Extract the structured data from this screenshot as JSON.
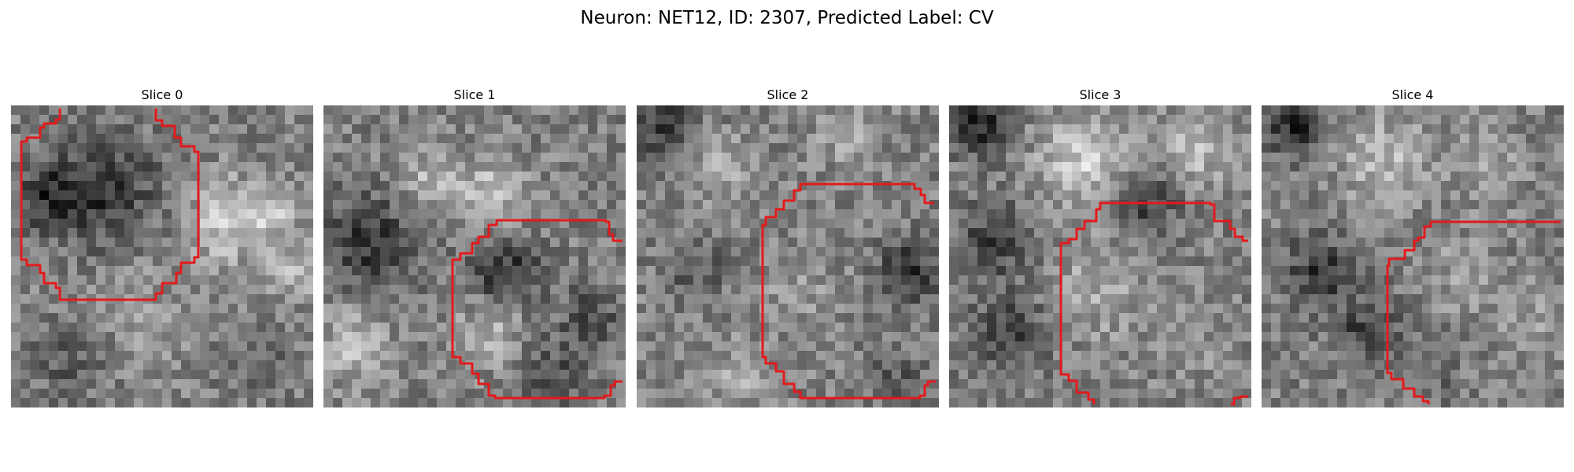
{
  "figure": {
    "title": "Neuron: NET12, ID: 2307, Predicted Label: CV"
  },
  "slices": [
    {
      "title": "Slice 0"
    },
    {
      "title": "Slice 1"
    },
    {
      "title": "Slice 2"
    },
    {
      "title": "Slice 3"
    },
    {
      "title": "Slice 4"
    }
  ],
  "colors": {
    "background": "#ffffff",
    "contour": "#e31a1c",
    "colormap": "grayscale"
  }
}
